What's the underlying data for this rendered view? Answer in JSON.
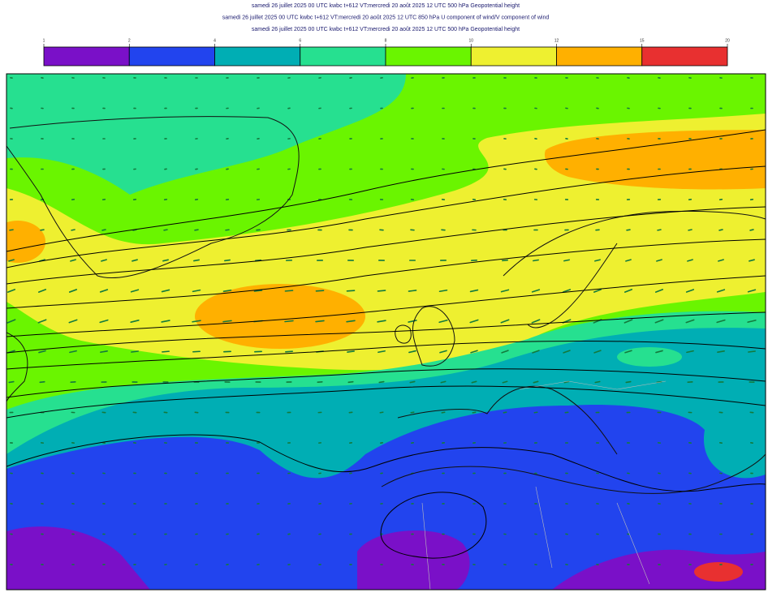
{
  "header": {
    "lines": [
      "samedi 26 juillet 2025 00 UTC kwbc t+612 VT:mercredi 20 août 2025 12 UTC 500 hPa  Geopotential height",
      "samedi 26 juillet 2025 00 UTC kwbc t+612 VT:mercredi 20 août 2025 12 UTC 850 hPa  U component of wind/V component of wind",
      "samedi 26 juillet 2025 00 UTC kwbc t+612 VT:mercredi 20 août 2025 12 UTC 500 hPa  Geopotential height"
    ]
  },
  "colorbar": {
    "ticks": [
      1,
      2,
      4,
      6,
      8,
      10,
      12,
      15,
      20
    ],
    "colors": [
      "#7a10c8",
      "#2244ee",
      "#00aeb4",
      "#26e090",
      "#6af500",
      "#eef030",
      "#ffb000",
      "#e83030"
    ]
  }
}
